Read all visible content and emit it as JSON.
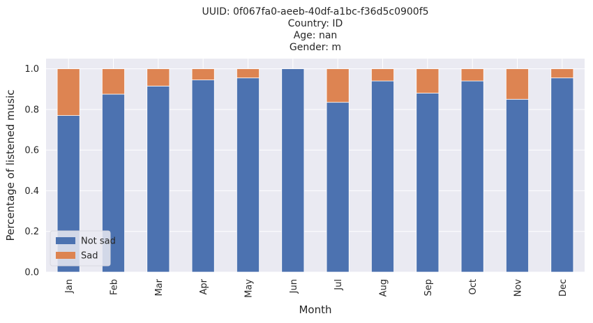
{
  "chart_data": {
    "type": "bar",
    "stacked": true,
    "title_lines": [
      "UUID: 0f067fa0-aeeb-40df-a1bc-f36d5c0900f5",
      "Country: ID",
      "Age: nan",
      "Gender: m"
    ],
    "xlabel": "Month",
    "ylabel": "Percentage of listened music",
    "categories": [
      "Jan",
      "Feb",
      "Mar",
      "Apr",
      "May",
      "Jun",
      "Jul",
      "Aug",
      "Sep",
      "Oct",
      "Nov",
      "Dec"
    ],
    "series": [
      {
        "name": "Not sad",
        "color": "#4c72b0",
        "values": [
          0.77,
          0.875,
          0.915,
          0.945,
          0.955,
          1.0,
          0.835,
          0.94,
          0.88,
          0.94,
          0.85,
          0.955
        ]
      },
      {
        "name": "Sad",
        "color": "#dd8452",
        "values": [
          0.23,
          0.125,
          0.085,
          0.055,
          0.045,
          0.0,
          0.165,
          0.06,
          0.12,
          0.06,
          0.15,
          0.045
        ]
      }
    ],
    "yticks": [
      "0.0",
      "0.2",
      "0.4",
      "0.6",
      "0.8",
      "1.0"
    ],
    "ylim": [
      0,
      1.05
    ],
    "grid": true,
    "legend_position": "lower-left",
    "background_color": "#eaeaf2"
  }
}
